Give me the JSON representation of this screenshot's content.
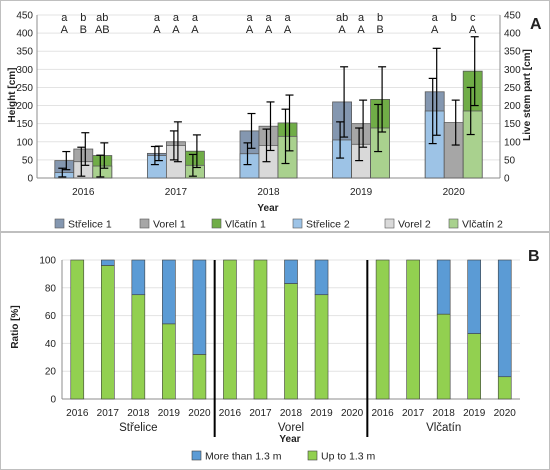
{
  "chart_data": [
    {
      "type": "bar",
      "panel_label": "A",
      "xlabel": "Year",
      "ylabel": "Height [cm]",
      "ylabel_right": "Live stem part [cm]",
      "categories": [
        "2016",
        "2017",
        "2018",
        "2019",
        "2020"
      ],
      "ylim": [
        0,
        450
      ],
      "yticks": [
        "0",
        "50",
        "100",
        "150",
        "200",
        "250",
        "300",
        "350",
        "400",
        "450"
      ],
      "stacked_overlay": true,
      "series": [
        {
          "name": "Střelice 1",
          "color": "#8497b0",
          "values": [
            48,
            68,
            130,
            210,
            238
          ],
          "err": [
            25,
            20,
            48,
            97,
            120
          ]
        },
        {
          "name": "Vorel 1",
          "color": "#a6a6a6",
          "values": [
            80,
            100,
            143,
            150,
            153
          ],
          "err": [
            45,
            55,
            67,
            65,
            62
          ]
        },
        {
          "name": "Vlčatín 1",
          "color": "#70ad47",
          "values": [
            62,
            74,
            152,
            217,
            295
          ],
          "err": [
            35,
            45,
            77,
            90,
            95
          ]
        },
        {
          "name": "Střelice 2",
          "color": "#9dc3e6",
          "values": [
            15,
            62,
            67,
            105,
            185
          ],
          "err": [
            12,
            25,
            30,
            50,
            90
          ]
        },
        {
          "name": "Vorel 2",
          "color": "#d9d9d9",
          "values": [
            45,
            90,
            90,
            93,
            null
          ],
          "err": [
            40,
            40,
            45,
            45,
            null
          ]
        },
        {
          "name": "Vlčatín 2",
          "color": "#a9d18e",
          "values": [
            33,
            35,
            115,
            138,
            185
          ],
          "err": [
            30,
            30,
            75,
            65,
            65
          ]
        }
      ],
      "significance": [
        {
          "category": "2016",
          "upper": [
            "a",
            "b",
            "ab"
          ],
          "lower": [
            "A",
            "B",
            "AB"
          ]
        },
        {
          "category": "2017",
          "upper": [
            "a",
            "a",
            "a"
          ],
          "lower": [
            "A",
            "A",
            "A"
          ]
        },
        {
          "category": "2018",
          "upper": [
            "a",
            "a",
            "a"
          ],
          "lower": [
            "A",
            "A",
            "A"
          ]
        },
        {
          "category": "2019",
          "upper": [
            "ab",
            "a",
            "b"
          ],
          "lower": [
            "A",
            "A",
            "B"
          ]
        },
        {
          "category": "2020",
          "upper": [
            "a",
            "b",
            "c"
          ],
          "lower": [
            "A",
            "",
            "A"
          ]
        }
      ],
      "legend_position": "bottom"
    },
    {
      "type": "bar",
      "panel_label": "B",
      "xlabel": "Year",
      "ylabel": "Ratio [%]",
      "ylim": [
        0,
        100
      ],
      "yticks": [
        "0",
        "20",
        "40",
        "60",
        "80",
        "100"
      ],
      "stacked": true,
      "groups": [
        {
          "name": "Střelice",
          "categories": [
            "2016",
            "2017",
            "2018",
            "2019",
            "2020"
          ],
          "up_to": [
            100,
            96,
            75,
            54,
            32
          ]
        },
        {
          "name": "Vorel",
          "categories": [
            "2016",
            "2017",
            "2018",
            "2019",
            "2020"
          ],
          "up_to": [
            100,
            100,
            83,
            75,
            null
          ]
        },
        {
          "name": "Vlčatín",
          "categories": [
            "2016",
            "2017",
            "2018",
            "2019",
            "2020"
          ],
          "up_to": [
            100,
            100,
            61,
            47,
            16
          ]
        }
      ],
      "series": [
        {
          "name": "More than 1.3 m",
          "color": "#5b9bd5"
        },
        {
          "name": "Up to 1.3 m",
          "color": "#92d050"
        }
      ],
      "legend_position": "bottom"
    }
  ]
}
